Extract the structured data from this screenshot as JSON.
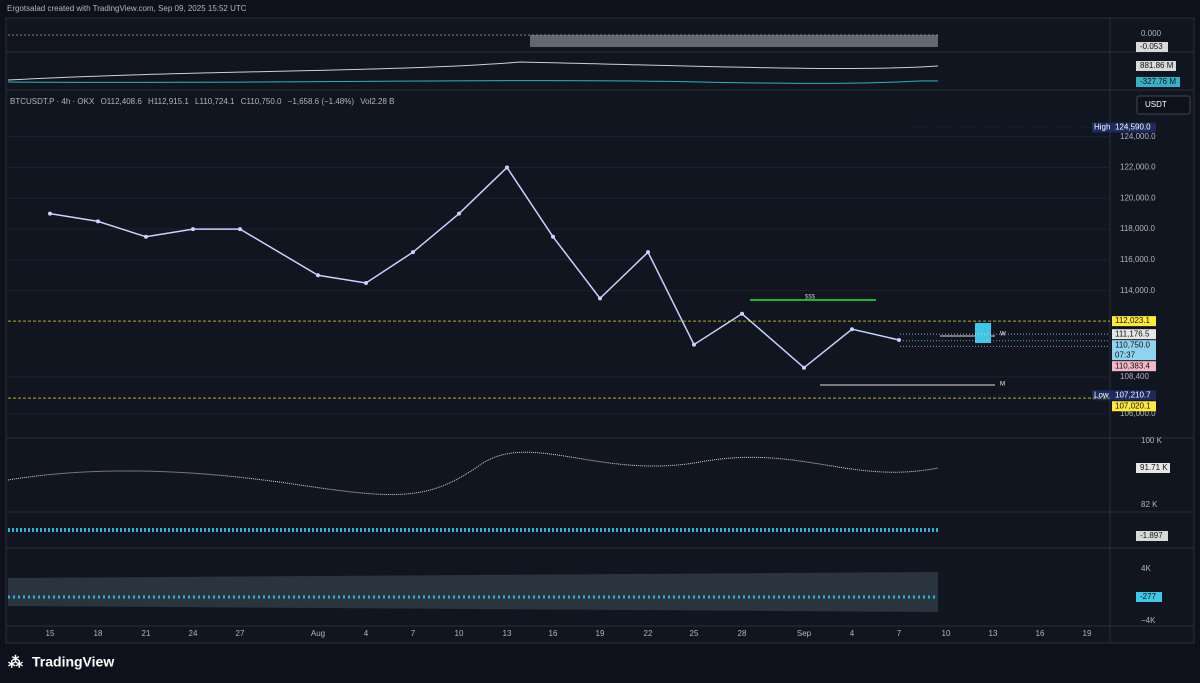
{
  "header": {
    "attribution": "Ergotsalad created with TradingView.com, Sep 09, 2025 15:52 UTC"
  },
  "legend": {
    "symbol": "BTCUSDT.P · 4h · OKX",
    "open": "O112,408.6",
    "high": "H112,915.1",
    "low": "L110,724.1",
    "close": "C110,750.0",
    "change": "−1,658.6 (−1.48%)",
    "volume": "Vol2.28 B"
  },
  "currency": "USDT",
  "chart_data": {
    "type": "line",
    "color": "#c9d3ff",
    "categories": [
      "15",
      "18",
      "21",
      "24",
      "27",
      "Aug",
      "4",
      "7",
      "10",
      "13",
      "16",
      "19",
      "22",
      "25",
      "28",
      "Sep",
      "4",
      "7",
      "10",
      "13",
      "16",
      "19"
    ],
    "values": [
      119000,
      118500,
      117500,
      118000,
      118000,
      115000,
      114500,
      116500,
      119000,
      122000,
      117500,
      113500,
      116500,
      110500,
      112500,
      109000,
      111500,
      110800,
      null,
      null,
      null,
      null
    ],
    "ylim": [
      104500,
      126900
    ],
    "yticks": [
      {
        "value": 124000,
        "label": "124,000.0"
      },
      {
        "value": 122000,
        "label": "122,000.0"
      },
      {
        "value": 120000,
        "label": "120,000.0"
      },
      {
        "value": 118000,
        "label": "118,000.0"
      },
      {
        "value": 116000,
        "label": "116,000.0"
      },
      {
        "value": 114000,
        "label": "114,000.0"
      },
      {
        "value": 108400,
        "label": "108,400"
      },
      {
        "value": 106000,
        "label": "106,000.0"
      }
    ]
  },
  "price_tags": [
    {
      "name": "High",
      "value": 124590,
      "label": "124,590.0",
      "color": "#1c2a5e"
    },
    {
      "value": 112023.1,
      "label": "112,023.1",
      "color": "#ffeb3b"
    },
    {
      "value": 111176.5,
      "label": "111,176.5",
      "color": "#e6e6e6"
    },
    {
      "value": 110750,
      "label": "110,750.0",
      "timer": "07:37",
      "color": "#8fd3f0"
    },
    {
      "value": 110383.4,
      "label": "110,383.4",
      "color": "#f4b7c8"
    },
    {
      "name": "Low",
      "value": 107210.7,
      "label": "107,210.7",
      "color": "#1c2a5e"
    },
    {
      "value": 107020.1,
      "label": "107,020.1",
      "color": "#ffeb3b"
    }
  ],
  "annotations": {
    "liquidity": "$$$",
    "weekly": "W",
    "monthly": "M"
  },
  "panels": {
    "oscillator": {
      "zero": "0.000",
      "current": "-0.053"
    },
    "flows": {
      "upper": "881.86 M",
      "lower": "-327.76 M"
    },
    "volume": {
      "top": "100 K",
      "current": "91.71 K",
      "bottom": "82 K"
    },
    "delta": {
      "current": "-1.897"
    },
    "cvd": {
      "top": "4K",
      "current": "-277",
      "bottom": "−4K"
    }
  },
  "footer": {
    "brand": "TradingView"
  }
}
